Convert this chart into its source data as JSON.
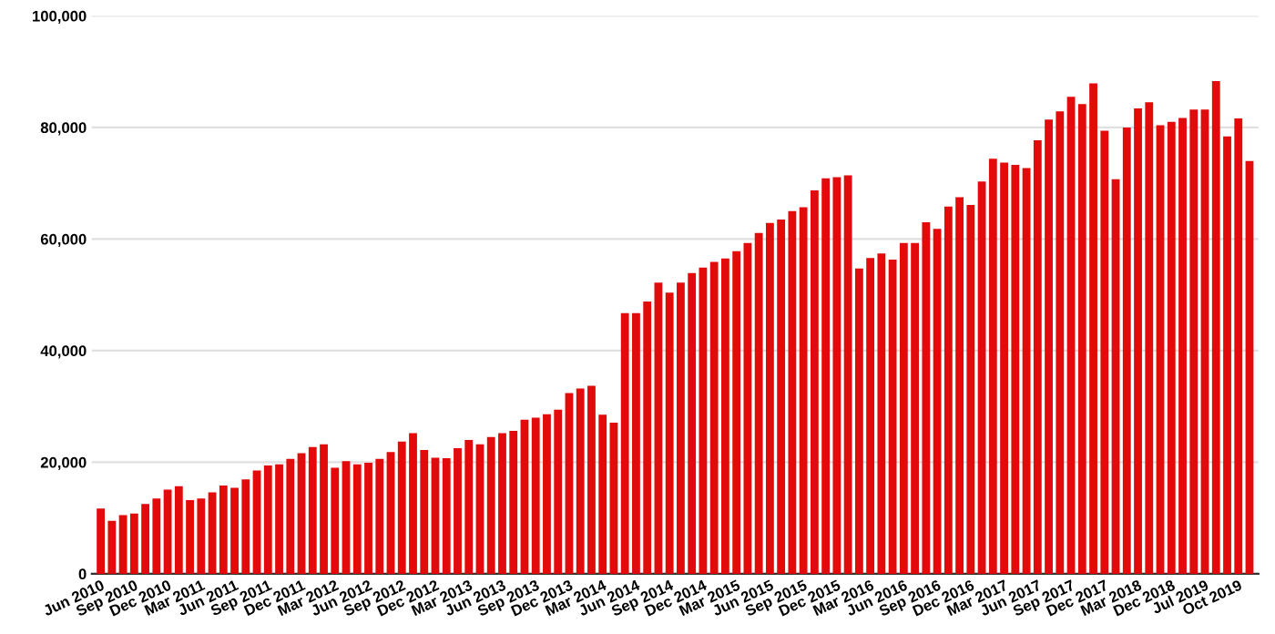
{
  "chart_data": {
    "type": "bar",
    "categories": [
      "Jun 2010",
      null,
      null,
      "Sep 2010",
      null,
      null,
      "Dec 2010",
      null,
      null,
      "Mar 2011",
      null,
      null,
      "Jun 2011",
      null,
      null,
      "Sep 2011",
      null,
      null,
      "Dec 2011",
      null,
      null,
      "Mar 2012",
      null,
      null,
      "Jun 2012",
      null,
      null,
      "Sep 2012",
      null,
      null,
      "Dec 2012",
      null,
      null,
      "Mar 2013",
      null,
      null,
      "Jun 2013",
      null,
      null,
      "Sep 2013",
      null,
      null,
      "Dec 2013",
      null,
      null,
      "Mar 2014",
      null,
      null,
      "Jun 2014",
      null,
      null,
      "Sep 2014",
      null,
      null,
      "Dec 2014",
      null,
      null,
      "Mar 2015",
      null,
      null,
      "Jun 2015",
      null,
      null,
      "Sep 2015",
      null,
      null,
      "Dec 2015",
      null,
      null,
      "Mar 2016",
      null,
      null,
      "Jun 2016",
      null,
      null,
      "Sep 2016",
      null,
      null,
      "Dec 2016",
      null,
      null,
      "Mar 2017",
      null,
      null,
      "Jun 2017",
      null,
      null,
      "Sep 2017",
      null,
      null,
      "Dec 2017",
      null,
      null,
      "Mar 2018",
      null,
      null,
      "Dec 2018",
      null,
      null,
      "Jul 2019",
      null,
      null,
      "Oct 2019",
      null
    ],
    "values": [
      11700,
      9500,
      10500,
      10800,
      12500,
      13500,
      15100,
      15700,
      13200,
      13500,
      14600,
      15800,
      15400,
      16900,
      18500,
      19400,
      19600,
      20600,
      21600,
      22700,
      23200,
      19000,
      20200,
      19600,
      19900,
      20600,
      21800,
      23700,
      25200,
      22200,
      20800,
      20700,
      22500,
      24000,
      23200,
      24500,
      25200,
      25600,
      27600,
      28000,
      28600,
      29400,
      32400,
      33200,
      33700,
      28500,
      27100,
      46700,
      46700,
      48800,
      52200,
      50400,
      52200,
      53900,
      54900,
      55900,
      56500,
      57800,
      59300,
      61100,
      62900,
      63500,
      65000,
      65700,
      68700,
      70900,
      71100,
      71400,
      54700,
      56600,
      57400,
      56300,
      59300,
      59300,
      63000,
      61800,
      65800,
      67500,
      66100,
      70300,
      74400,
      73700,
      73300,
      72700,
      77700,
      81400,
      82900,
      85500,
      84200,
      87900,
      79400,
      70700,
      80000,
      83400,
      84500,
      80400,
      81000,
      81700,
      83200,
      83200,
      88300,
      78400,
      81600,
      74000
    ],
    "color": "#e20a0a",
    "ylim": [
      0,
      100000
    ],
    "yticks": [
      {
        "value": 0,
        "label": "0"
      },
      {
        "value": 20000,
        "label": "20,000"
      },
      {
        "value": 40000,
        "label": "40,000"
      },
      {
        "value": 60000,
        "label": "60,000"
      },
      {
        "value": 80000,
        "label": "80,000"
      },
      {
        "value": 100000,
        "label": "100,000"
      }
    ],
    "grid": "y"
  }
}
